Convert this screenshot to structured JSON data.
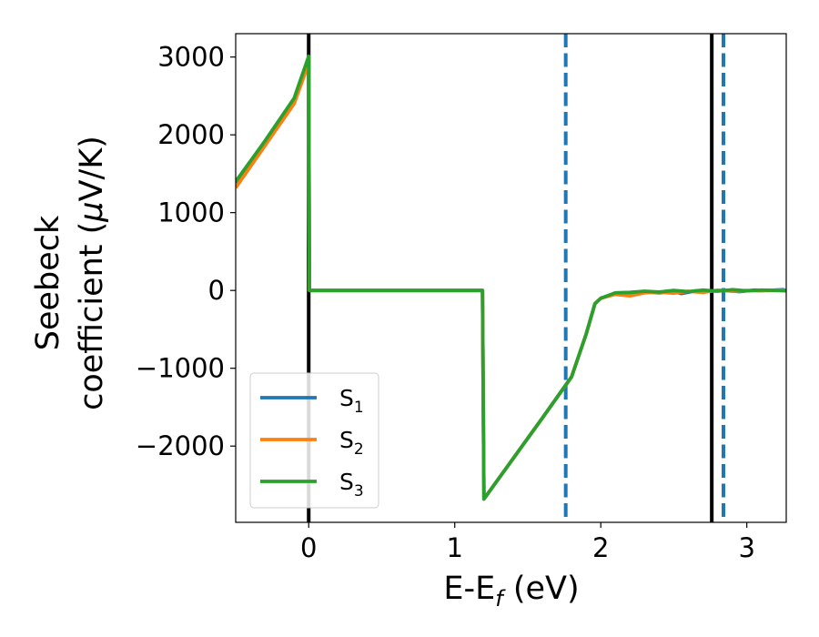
{
  "chart_data": {
    "type": "line",
    "xlabel": {
      "main": "E-E",
      "sub": "f",
      "suffix": " (eV)"
    },
    "ylabel": {
      "line1": "Seebeck",
      "line2_prefix": "coefficient  (",
      "mu": "μ",
      "line2_suffix": "V/K)"
    },
    "xlim": [
      -0.5,
      3.27
    ],
    "ylim": [
      -2980,
      3300
    ],
    "xticks": [
      {
        "value": 0,
        "label": "0"
      },
      {
        "value": 1,
        "label": "1"
      },
      {
        "value": 2,
        "label": "2"
      },
      {
        "value": 3,
        "label": "3"
      }
    ],
    "yticks": [
      {
        "value": 3000,
        "label": "3000"
      },
      {
        "value": 2000,
        "label": "2000"
      },
      {
        "value": 1000,
        "label": "1000"
      },
      {
        "value": 0,
        "label": "0"
      },
      {
        "value": -1000,
        "label": "−1000"
      },
      {
        "value": -2000,
        "label": "−2000"
      }
    ],
    "grid": false,
    "legend_position": "lower-left",
    "series": [
      {
        "name": "S",
        "sub": "1",
        "color": "#1f77b4",
        "points": [
          [
            -0.5,
            1380
          ],
          [
            -0.3,
            1900
          ],
          [
            -0.1,
            2450
          ],
          [
            0,
            2960
          ],
          [
            0.005,
            0
          ],
          [
            0.4,
            0
          ],
          [
            0.8,
            0
          ],
          [
            1.19,
            0
          ],
          [
            1.2,
            -2680
          ],
          [
            1.4,
            -2160
          ],
          [
            1.6,
            -1640
          ],
          [
            1.8,
            -1110
          ],
          [
            1.9,
            -560
          ],
          [
            1.96,
            -170
          ],
          [
            2.0,
            -100
          ],
          [
            2.1,
            -40
          ],
          [
            2.2,
            -50
          ],
          [
            2.3,
            -20
          ],
          [
            2.4,
            -30
          ],
          [
            2.5,
            -15
          ],
          [
            2.55,
            -40
          ],
          [
            2.65,
            -5
          ],
          [
            2.75,
            -10
          ],
          [
            2.85,
            0
          ],
          [
            2.95,
            -15
          ],
          [
            3.05,
            5
          ],
          [
            3.15,
            0
          ],
          [
            3.25,
            10
          ],
          [
            3.27,
            0
          ]
        ]
      },
      {
        "name": "S",
        "sub": "2",
        "color": "#ff7f0e",
        "points": [
          [
            -0.5,
            1320
          ],
          [
            -0.3,
            1860
          ],
          [
            -0.1,
            2400
          ],
          [
            0,
            2920
          ],
          [
            0.005,
            0
          ],
          [
            0.4,
            0
          ],
          [
            0.8,
            0
          ],
          [
            1.19,
            0
          ],
          [
            1.2,
            -2680
          ],
          [
            1.4,
            -2160
          ],
          [
            1.6,
            -1640
          ],
          [
            1.8,
            -1110
          ],
          [
            1.9,
            -560
          ],
          [
            1.96,
            -170
          ],
          [
            2.0,
            -100
          ],
          [
            2.1,
            -50
          ],
          [
            2.2,
            -70
          ],
          [
            2.3,
            -30
          ],
          [
            2.4,
            -20
          ],
          [
            2.5,
            -35
          ],
          [
            2.6,
            -10
          ],
          [
            2.7,
            -25
          ],
          [
            2.8,
            5
          ],
          [
            2.9,
            -10
          ],
          [
            3.0,
            0
          ],
          [
            3.1,
            -5
          ],
          [
            3.2,
            5
          ],
          [
            3.27,
            0
          ]
        ]
      },
      {
        "name": "S",
        "sub": "3",
        "color": "#2ca02c",
        "points": [
          [
            -0.5,
            1400
          ],
          [
            -0.3,
            1920
          ],
          [
            -0.1,
            2470
          ],
          [
            0,
            3010
          ],
          [
            0.005,
            0
          ],
          [
            0.4,
            0
          ],
          [
            0.8,
            0
          ],
          [
            1.19,
            0
          ],
          [
            1.2,
            -2680
          ],
          [
            1.4,
            -2160
          ],
          [
            1.6,
            -1640
          ],
          [
            1.8,
            -1110
          ],
          [
            1.9,
            -560
          ],
          [
            1.96,
            -170
          ],
          [
            2.0,
            -100
          ],
          [
            2.1,
            -30
          ],
          [
            2.2,
            -25
          ],
          [
            2.3,
            -10
          ],
          [
            2.4,
            -20
          ],
          [
            2.5,
            0
          ],
          [
            2.6,
            -15
          ],
          [
            2.7,
            5
          ],
          [
            2.8,
            -10
          ],
          [
            2.9,
            10
          ],
          [
            3.0,
            -5
          ],
          [
            3.1,
            5
          ],
          [
            3.2,
            0
          ],
          [
            3.27,
            -5
          ]
        ]
      }
    ],
    "vlines": [
      {
        "x": 0,
        "style": "solid",
        "color": "#000000"
      },
      {
        "x": 2.76,
        "style": "solid",
        "color": "#000000"
      },
      {
        "x": 1.76,
        "style": "dashed",
        "color": "#1f77b4"
      },
      {
        "x": 2.84,
        "style": "dashed",
        "color": "#1f77b4"
      }
    ]
  }
}
